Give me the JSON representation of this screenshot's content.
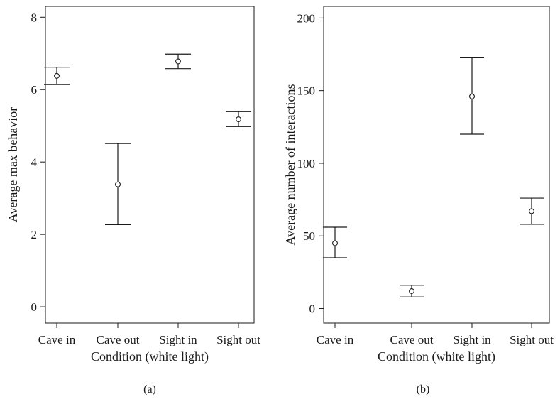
{
  "chart_data": [
    {
      "type": "scatter",
      "panel_label": "(a)",
      "categories": [
        "Cave in",
        "Cave out",
        "Sight in",
        "Sight out"
      ],
      "means": [
        6.38,
        3.38,
        6.78,
        5.18
      ],
      "lower": [
        6.14,
        2.27,
        6.58,
        4.98
      ],
      "upper": [
        6.62,
        4.51,
        6.98,
        5.39
      ],
      "xlabel": "Condition (white light)",
      "ylabel": "Average max behavior",
      "ylim": [
        -0.45,
        8.3
      ],
      "yticks": [
        0,
        2,
        4,
        6,
        8
      ],
      "grid": false
    },
    {
      "type": "scatter",
      "panel_label": "(b)",
      "categories": [
        "Cave in",
        "Cave out",
        "Sight in",
        "Sight out"
      ],
      "means": [
        45,
        12,
        146,
        67
      ],
      "lower": [
        35,
        8,
        120,
        58
      ],
      "upper": [
        56,
        16,
        173,
        76
      ],
      "xlabel": "Condition (white light)",
      "ylabel": "Average number of interactions",
      "ylim": [
        -10,
        208
      ],
      "yticks": [
        0,
        50,
        100,
        150,
        200
      ],
      "grid": false
    }
  ]
}
